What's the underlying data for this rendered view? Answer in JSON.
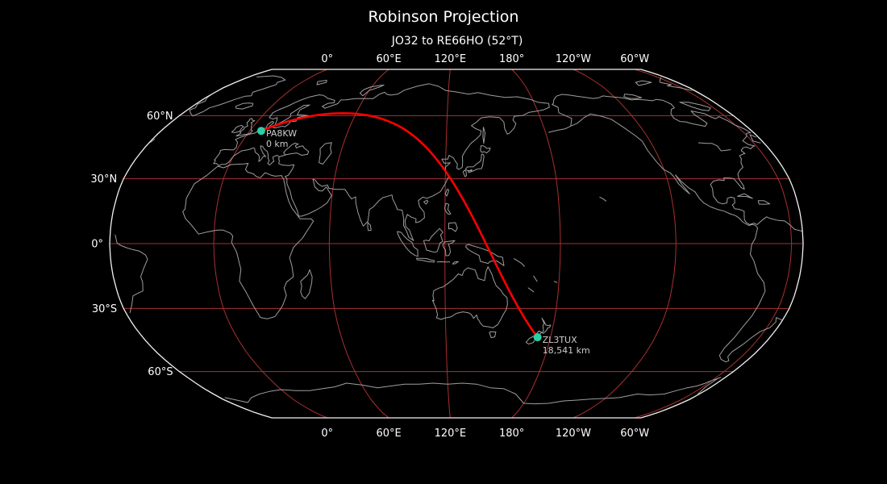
{
  "title": "Robinson Projection",
  "subtitle": "JO32 to RE66HO (52°T)",
  "axis": {
    "top_labels": [
      "0°",
      "60°E",
      "120°E",
      "180°",
      "120°W",
      "60°W"
    ],
    "bottom_labels": [
      "0°",
      "60°E",
      "120°E",
      "180°",
      "120°W",
      "60°W"
    ],
    "left_labels": [
      "60°N",
      "30°N",
      "0°",
      "30°S",
      "60°S"
    ],
    "lon_ticks_deg": [
      0,
      60,
      120,
      180,
      240,
      300
    ],
    "lat_ticks_deg": [
      60,
      30,
      0,
      -30,
      -60
    ]
  },
  "route": {
    "markers": [
      {
        "label": "PA8KW",
        "sublabel": "0 km",
        "lat": 52.5,
        "lon": 7.0
      },
      {
        "label": "ZL3TUX",
        "sublabel": "18,541 km",
        "lat": -43.4,
        "lon": 172.6
      }
    ]
  },
  "colors": {
    "background": "#000000",
    "graticule": "#a93030",
    "boundary": "#f2f2f2",
    "coastline": "#9e9e9e",
    "route": "#ff0000",
    "marker": "#2bcfa4",
    "tick_text": "#ffffff",
    "marker_text": "#cccccc",
    "title_text": "#ffffff"
  }
}
